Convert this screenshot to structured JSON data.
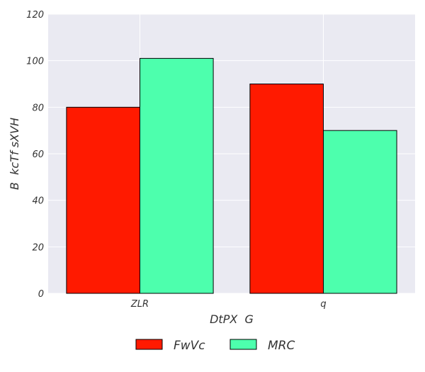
{
  "chart_data": {
    "type": "bar",
    "title": "",
    "xlabel": "DtPX  G",
    "ylabel": "B  kcTf sXVH",
    "categories": [
      "ZLR",
      "q"
    ],
    "series": [
      {
        "name": "FwVc",
        "values": [
          80,
          90
        ],
        "color": "#ff1a00"
      },
      {
        "name": "MRC",
        "values": [
          101,
          70
        ],
        "color": "#4dffad"
      }
    ],
    "ylim": [
      0,
      120
    ],
    "yticks": [
      0,
      20,
      40,
      60,
      80,
      100,
      120
    ],
    "grid": true,
    "legend_position": "bottom-center",
    "plot_background": "#eaeaf2",
    "grid_color": "#ffffff"
  }
}
